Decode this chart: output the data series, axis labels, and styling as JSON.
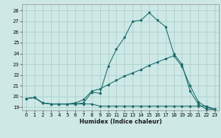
{
  "xlabel": "Humidex (Indice chaleur)",
  "bg_color": "#cde8e5",
  "grid_color": "#aacfcc",
  "line_color": "#1a6b6b",
  "xlim": [
    -0.5,
    23.5
  ],
  "ylim": [
    18.7,
    28.6
  ],
  "xticks": [
    0,
    1,
    2,
    3,
    4,
    5,
    6,
    7,
    8,
    9,
    10,
    11,
    12,
    13,
    14,
    15,
    16,
    17,
    18,
    19,
    20,
    21,
    22,
    23
  ],
  "yticks": [
    19,
    20,
    21,
    22,
    23,
    24,
    25,
    26,
    27,
    28
  ],
  "line1": [
    19.8,
    19.9,
    19.4,
    19.3,
    19.3,
    19.3,
    19.3,
    19.4,
    20.4,
    20.3,
    22.8,
    24.4,
    25.5,
    27.0,
    27.1,
    27.8,
    27.1,
    26.5,
    24.0,
    23.0,
    20.5,
    19.3,
    18.8,
    18.8
  ],
  "line2": [
    19.8,
    19.9,
    19.4,
    19.3,
    19.3,
    19.3,
    19.4,
    19.7,
    20.5,
    20.7,
    21.1,
    21.5,
    21.9,
    22.2,
    22.5,
    22.9,
    23.2,
    23.5,
    23.8,
    22.8,
    21.0,
    19.5,
    19.0,
    18.8
  ],
  "line3": [
    19.8,
    19.9,
    19.4,
    19.3,
    19.3,
    19.3,
    19.3,
    19.3,
    19.3,
    19.1,
    19.1,
    19.1,
    19.1,
    19.1,
    19.1,
    19.1,
    19.1,
    19.1,
    19.1,
    19.1,
    19.1,
    19.1,
    19.1,
    18.8
  ]
}
